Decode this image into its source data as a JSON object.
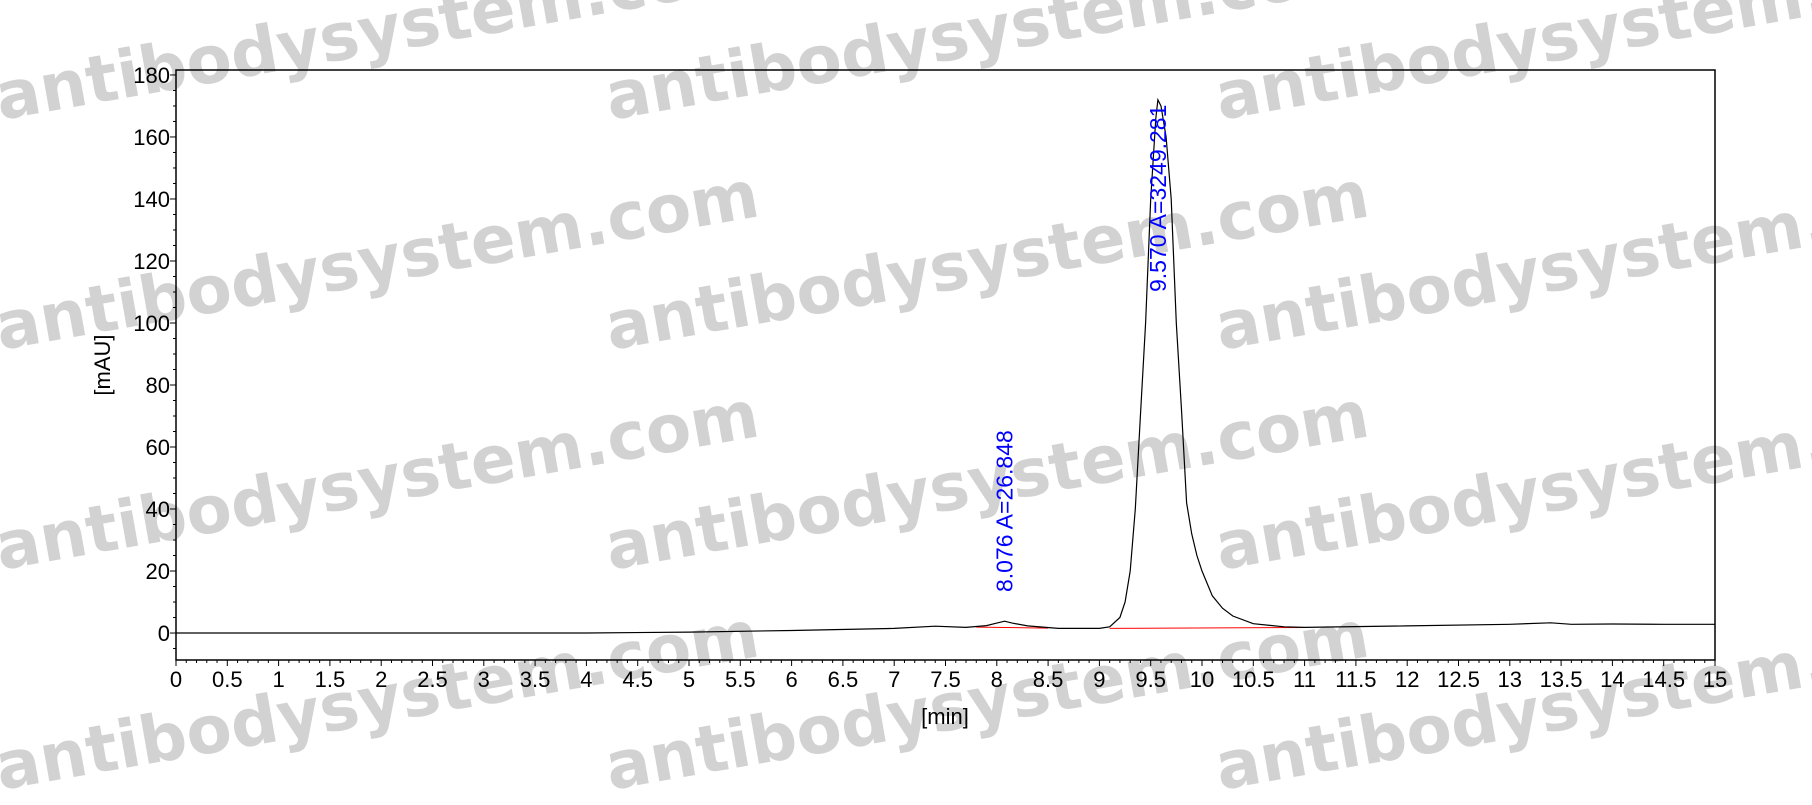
{
  "chart_data": {
    "type": "line",
    "title": "",
    "xlabel": "[min]",
    "ylabel": "[mAU]",
    "xlim": [
      0,
      15
    ],
    "ylim": [
      -8.7,
      181.6
    ],
    "xticks": [
      "0",
      "0.5",
      "1",
      "1.5",
      "2",
      "2.5",
      "3",
      "3.5",
      "4",
      "4.5",
      "5",
      "5.5",
      "6",
      "6.5",
      "7",
      "7.5",
      "8",
      "8.5",
      "9",
      "9.5",
      "10",
      "10.5",
      "11",
      "11.5",
      "12",
      "12.5",
      "13",
      "13.5",
      "14",
      "14.5",
      "15"
    ],
    "yticks": [
      "0",
      "20",
      "40",
      "60",
      "80",
      "100",
      "120",
      "140",
      "160",
      "180"
    ],
    "grid": false,
    "trace_color": "#000000",
    "baseline_color": "#ff0000",
    "label_color": "#0000ff",
    "series": [
      {
        "x": [
          0,
          4,
          5,
          6,
          7,
          7.4,
          7.7,
          7.9,
          8.0,
          8.076,
          8.15,
          8.3,
          8.6,
          9.0,
          9.1,
          9.2,
          9.25,
          9.3,
          9.35,
          9.4,
          9.45,
          9.5,
          9.55,
          9.57,
          9.6,
          9.65,
          9.7,
          9.75,
          9.8,
          9.85,
          9.9,
          9.95,
          10.0,
          10.1,
          10.2,
          10.3,
          10.5,
          10.8,
          11,
          12,
          13,
          13.4,
          13.6,
          14,
          14.5,
          15
        ],
        "y": [
          0,
          0,
          0.3,
          0.8,
          1.5,
          2.2,
          1.8,
          2.4,
          3.2,
          3.8,
          3.2,
          2.3,
          1.5,
          1.5,
          2,
          5,
          10,
          20,
          40,
          70,
          100,
          140,
          166,
          172,
          170,
          160,
          140,
          100,
          72,
          42,
          32,
          25,
          20,
          12,
          8,
          5.5,
          3,
          2,
          1.8,
          2.3,
          2.8,
          3.3,
          2.8,
          2.9,
          2.8,
          2.8
        ]
      }
    ],
    "baselines": [
      {
        "x": [
          7.8,
          8.5
        ],
        "y": [
          1.9,
          1.6
        ]
      },
      {
        "x": [
          9.1,
          11.0
        ],
        "y": [
          1.5,
          1.8
        ]
      }
    ],
    "peaks": [
      {
        "rt": 8.076,
        "label": "8.076 A=26.848"
      },
      {
        "rt": 9.57,
        "label": "9.570 A=3249.281"
      }
    ]
  },
  "watermark": "antibodysystem.com"
}
